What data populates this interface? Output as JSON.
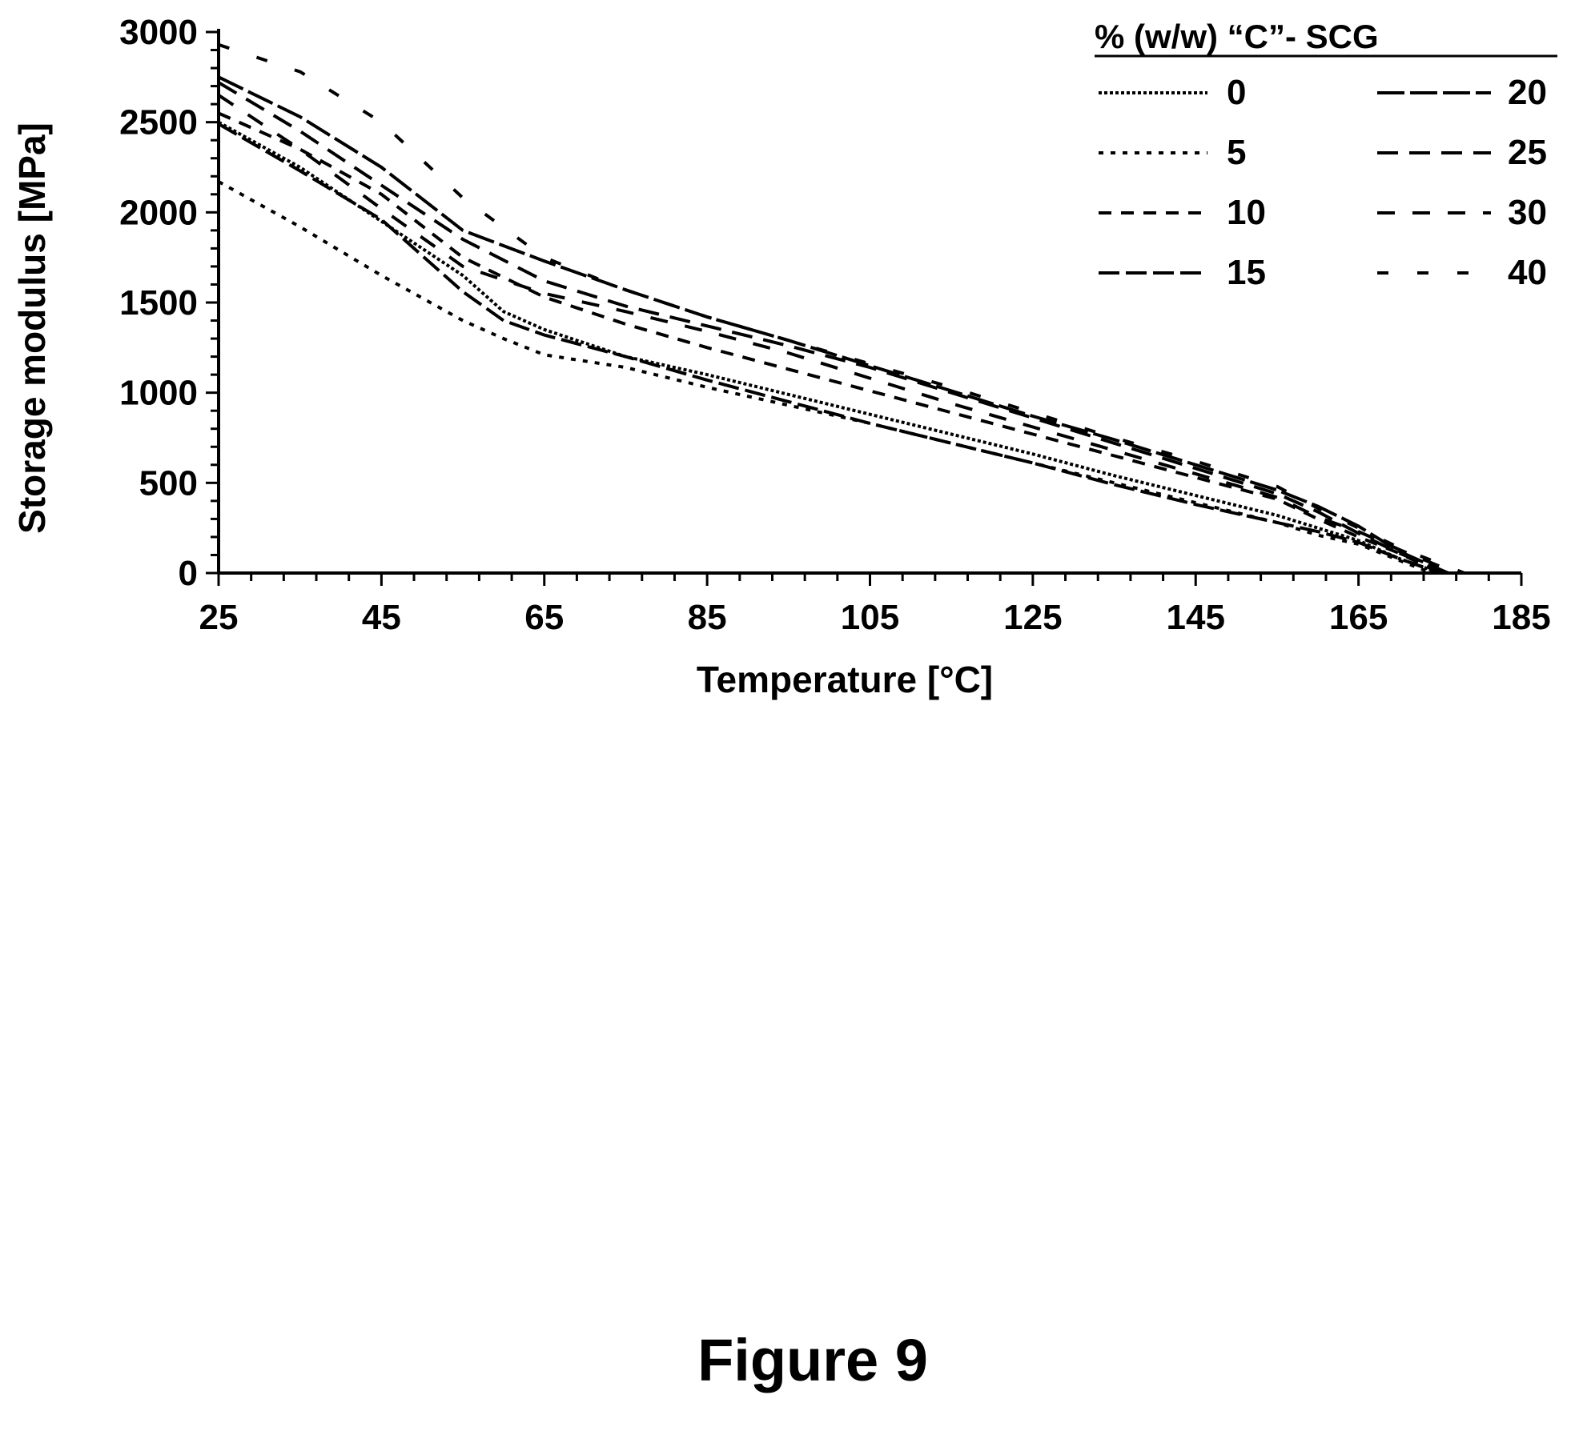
{
  "caption": "Figure 9",
  "chart_data": {
    "type": "line",
    "xlabel": "Temperature [°C]",
    "ylabel": "Storage modulus [MPa]",
    "xlim": [
      25,
      185
    ],
    "ylim": [
      0,
      3000
    ],
    "x_ticks": [
      25,
      45,
      65,
      85,
      105,
      125,
      145,
      165,
      185
    ],
    "y_ticks": [
      0,
      500,
      1000,
      1500,
      2000,
      2500,
      3000
    ],
    "grid": false,
    "legend": {
      "title": "% (w/w) “C”- SCG",
      "placement": "top-right"
    },
    "series": [
      {
        "name": "0",
        "dash": "4,3",
        "x": [
          25,
          35,
          45,
          55,
          60,
          65,
          75,
          85,
          95,
          105,
          115,
          125,
          135,
          145,
          155,
          160,
          165,
          170,
          175
        ],
        "y": [
          2500,
          2250,
          1950,
          1650,
          1450,
          1350,
          1200,
          1100,
          990,
          880,
          770,
          660,
          540,
          430,
          320,
          250,
          180,
          80,
          0
        ]
      },
      {
        "name": "5",
        "dash": "6,9",
        "x": [
          25,
          35,
          45,
          55,
          60,
          65,
          75,
          85,
          95,
          105,
          115,
          125,
          135,
          145,
          155,
          160,
          165,
          170,
          174
        ],
        "y": [
          2170,
          1920,
          1650,
          1400,
          1300,
          1210,
          1140,
          1030,
          930,
          830,
          720,
          610,
          500,
          390,
          280,
          210,
          160,
          70,
          0
        ]
      },
      {
        "name": "10",
        "dash": "16,12",
        "x": [
          25,
          35,
          45,
          55,
          65,
          75,
          85,
          95,
          105,
          115,
          125,
          135,
          145,
          155,
          160,
          165,
          170,
          175
        ],
        "y": [
          2550,
          2350,
          2100,
          1750,
          1530,
          1380,
          1250,
          1130,
          1010,
          890,
          770,
          650,
          530,
          410,
          300,
          200,
          110,
          0
        ]
      },
      {
        "name": "15",
        "dash": "26,8",
        "x": [
          25,
          35,
          45,
          55,
          60,
          65,
          75,
          85,
          95,
          105,
          115,
          125,
          135,
          145,
          155,
          160,
          165,
          170,
          175
        ],
        "y": [
          2490,
          2230,
          1960,
          1560,
          1400,
          1320,
          1200,
          1070,
          950,
          830,
          720,
          610,
          490,
          380,
          280,
          230,
          170,
          80,
          0
        ]
      },
      {
        "name": "20",
        "dash": "34,7",
        "x": [
          25,
          35,
          45,
          55,
          65,
          75,
          85,
          95,
          105,
          115,
          125,
          135,
          145,
          155,
          160,
          165,
          170,
          176
        ],
        "y": [
          2750,
          2530,
          2250,
          1900,
          1730,
          1570,
          1420,
          1290,
          1150,
          1010,
          870,
          740,
          600,
          460,
          370,
          260,
          120,
          0
        ]
      },
      {
        "name": "25",
        "dash": "26,14",
        "x": [
          25,
          35,
          45,
          55,
          65,
          75,
          85,
          95,
          105,
          115,
          125,
          135,
          145,
          155,
          160,
          165,
          170,
          176
        ],
        "y": [
          2720,
          2450,
          2150,
          1850,
          1620,
          1480,
          1370,
          1260,
          1140,
          1000,
          860,
          720,
          580,
          440,
          340,
          220,
          110,
          0
        ]
      },
      {
        "name": "30",
        "dash": "22,22",
        "x": [
          25,
          35,
          45,
          55,
          65,
          75,
          85,
          95,
          105,
          115,
          125,
          135,
          145,
          155,
          160,
          165,
          170,
          177
        ],
        "y": [
          2650,
          2350,
          2020,
          1700,
          1550,
          1450,
          1340,
          1220,
          1080,
          940,
          810,
          680,
          550,
          420,
          310,
          230,
          130,
          0
        ]
      },
      {
        "name": "40",
        "dash": "14,36",
        "x": [
          25,
          35,
          45,
          55,
          65,
          75,
          85,
          95,
          105,
          115,
          125,
          135,
          145,
          155,
          160,
          165,
          170,
          178
        ],
        "y": [
          2930,
          2780,
          2500,
          2080,
          1750,
          1570,
          1420,
          1290,
          1160,
          1030,
          890,
          750,
          620,
          480,
          360,
          250,
          140,
          0
        ]
      }
    ]
  }
}
